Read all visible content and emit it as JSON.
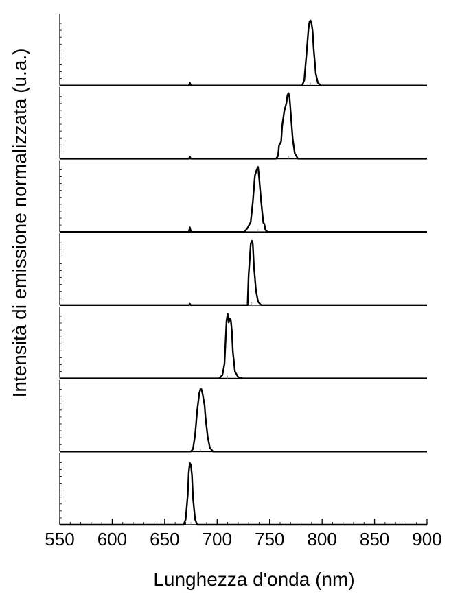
{
  "chart_data": {
    "type": "line",
    "layout": "stacked-panels",
    "xlabel": "Lunghezza d'onda (nm)",
    "ylabel": "Intensità di emissione normalizzata (u.a.)",
    "xlim": [
      550,
      900
    ],
    "xticks": [
      550,
      600,
      650,
      700,
      750,
      800,
      850,
      900
    ],
    "xtick_labels": [
      "550",
      "600",
      "650",
      "700",
      "750",
      "800",
      "850",
      "900"
    ],
    "ylim": [
      0,
      1
    ],
    "grid": false,
    "line_color": "#000000",
    "panels": [
      {
        "peak_x": 789,
        "values": [
          [
            550,
            0
          ],
          [
            673,
            0
          ],
          [
            674,
            0.04
          ],
          [
            675,
            0
          ],
          [
            781,
            0
          ],
          [
            783,
            0.08
          ],
          [
            785,
            0.45
          ],
          [
            787,
            0.85
          ],
          [
            788,
            0.96
          ],
          [
            789,
            0.98
          ],
          [
            790,
            0.93
          ],
          [
            791,
            0.82
          ],
          [
            792,
            0.55
          ],
          [
            794,
            0.18
          ],
          [
            796,
            0.04
          ],
          [
            799,
            0
          ],
          [
            900,
            0
          ]
        ]
      },
      {
        "peak_x": 768,
        "values": [
          [
            550,
            0
          ],
          [
            673,
            0
          ],
          [
            674,
            0.03
          ],
          [
            675,
            0
          ],
          [
            756,
            0
          ],
          [
            758,
            0.04
          ],
          [
            759,
            0.2
          ],
          [
            761,
            0.26
          ],
          [
            762,
            0.5
          ],
          [
            764,
            0.72
          ],
          [
            766,
            0.84
          ],
          [
            767,
            0.96
          ],
          [
            768,
            0.99
          ],
          [
            769,
            0.92
          ],
          [
            770,
            0.72
          ],
          [
            772,
            0.3
          ],
          [
            774,
            0.08
          ],
          [
            777,
            0
          ],
          [
            900,
            0
          ]
        ]
      },
      {
        "peak_x": 739,
        "values": [
          [
            550,
            0
          ],
          [
            673,
            0
          ],
          [
            674,
            0.07
          ],
          [
            675,
            0
          ],
          [
            726,
            0
          ],
          [
            729,
            0.06
          ],
          [
            732,
            0.15
          ],
          [
            734,
            0.45
          ],
          [
            736,
            0.85
          ],
          [
            738,
            0.95
          ],
          [
            739,
            0.98
          ],
          [
            740,
            0.82
          ],
          [
            742,
            0.45
          ],
          [
            744,
            0.14
          ],
          [
            745,
            0.12
          ],
          [
            746,
            0.03
          ],
          [
            748,
            0
          ],
          [
            900,
            0
          ]
        ]
      },
      {
        "peak_x": 733,
        "values": [
          [
            550,
            0
          ],
          [
            673,
            0
          ],
          [
            674,
            0.02
          ],
          [
            675,
            0
          ],
          [
            729,
            0
          ],
          [
            730,
            0.45
          ],
          [
            731,
            0.68
          ],
          [
            732,
            0.92
          ],
          [
            733,
            0.97
          ],
          [
            734,
            0.92
          ],
          [
            735,
            0.6
          ],
          [
            737,
            0.22
          ],
          [
            739,
            0.05
          ],
          [
            742,
            0
          ],
          [
            900,
            0
          ]
        ]
      },
      {
        "peak_x": 710,
        "values": [
          [
            550,
            0
          ],
          [
            702,
            0
          ],
          [
            705,
            0.05
          ],
          [
            707,
            0.22
          ],
          [
            708,
            0.55
          ],
          [
            709,
            0.87
          ],
          [
            710,
            0.97
          ],
          [
            711,
            0.84
          ],
          [
            712,
            0.9
          ],
          [
            713,
            0.88
          ],
          [
            714,
            0.72
          ],
          [
            715,
            0.4
          ],
          [
            717,
            0.1
          ],
          [
            720,
            0.02
          ],
          [
            724,
            0
          ],
          [
            900,
            0
          ]
        ]
      },
      {
        "peak_x": 684,
        "values": [
          [
            550,
            0
          ],
          [
            675,
            0
          ],
          [
            677,
            0.04
          ],
          [
            679,
            0.25
          ],
          [
            681,
            0.62
          ],
          [
            683,
            0.88
          ],
          [
            684,
            0.94
          ],
          [
            685,
            0.94
          ],
          [
            686,
            0.88
          ],
          [
            688,
            0.7
          ],
          [
            689,
            0.5
          ],
          [
            691,
            0.22
          ],
          [
            693,
            0.06
          ],
          [
            696,
            0
          ],
          [
            900,
            0
          ]
        ]
      },
      {
        "peak_x": 675,
        "values": [
          [
            550,
            0
          ],
          [
            668,
            0
          ],
          [
            670,
            0.08
          ],
          [
            672,
            0.45
          ],
          [
            673,
            0.8
          ],
          [
            674,
            0.93
          ],
          [
            675,
            0.9
          ],
          [
            676,
            0.75
          ],
          [
            677,
            0.4
          ],
          [
            679,
            0.08
          ],
          [
            681,
            0
          ],
          [
            900,
            0
          ]
        ]
      }
    ]
  }
}
